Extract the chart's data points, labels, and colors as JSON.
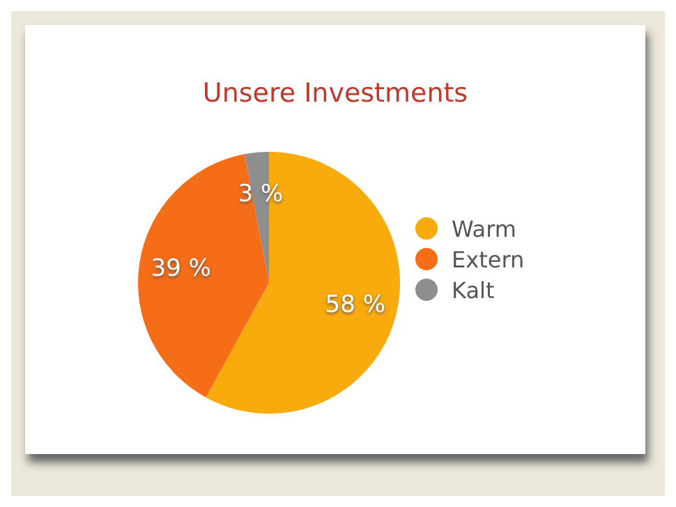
{
  "chart_data": {
    "type": "pie",
    "title": "Unsere Investments",
    "categories": [
      "Warm",
      "Extern",
      "Kalt"
    ],
    "values": [
      58,
      39,
      3
    ],
    "colors": [
      "#f9aa0d",
      "#f66d17",
      "#8e8e8e"
    ],
    "value_labels": [
      "58 %",
      "39 %",
      "3 %"
    ],
    "legend": "right"
  }
}
